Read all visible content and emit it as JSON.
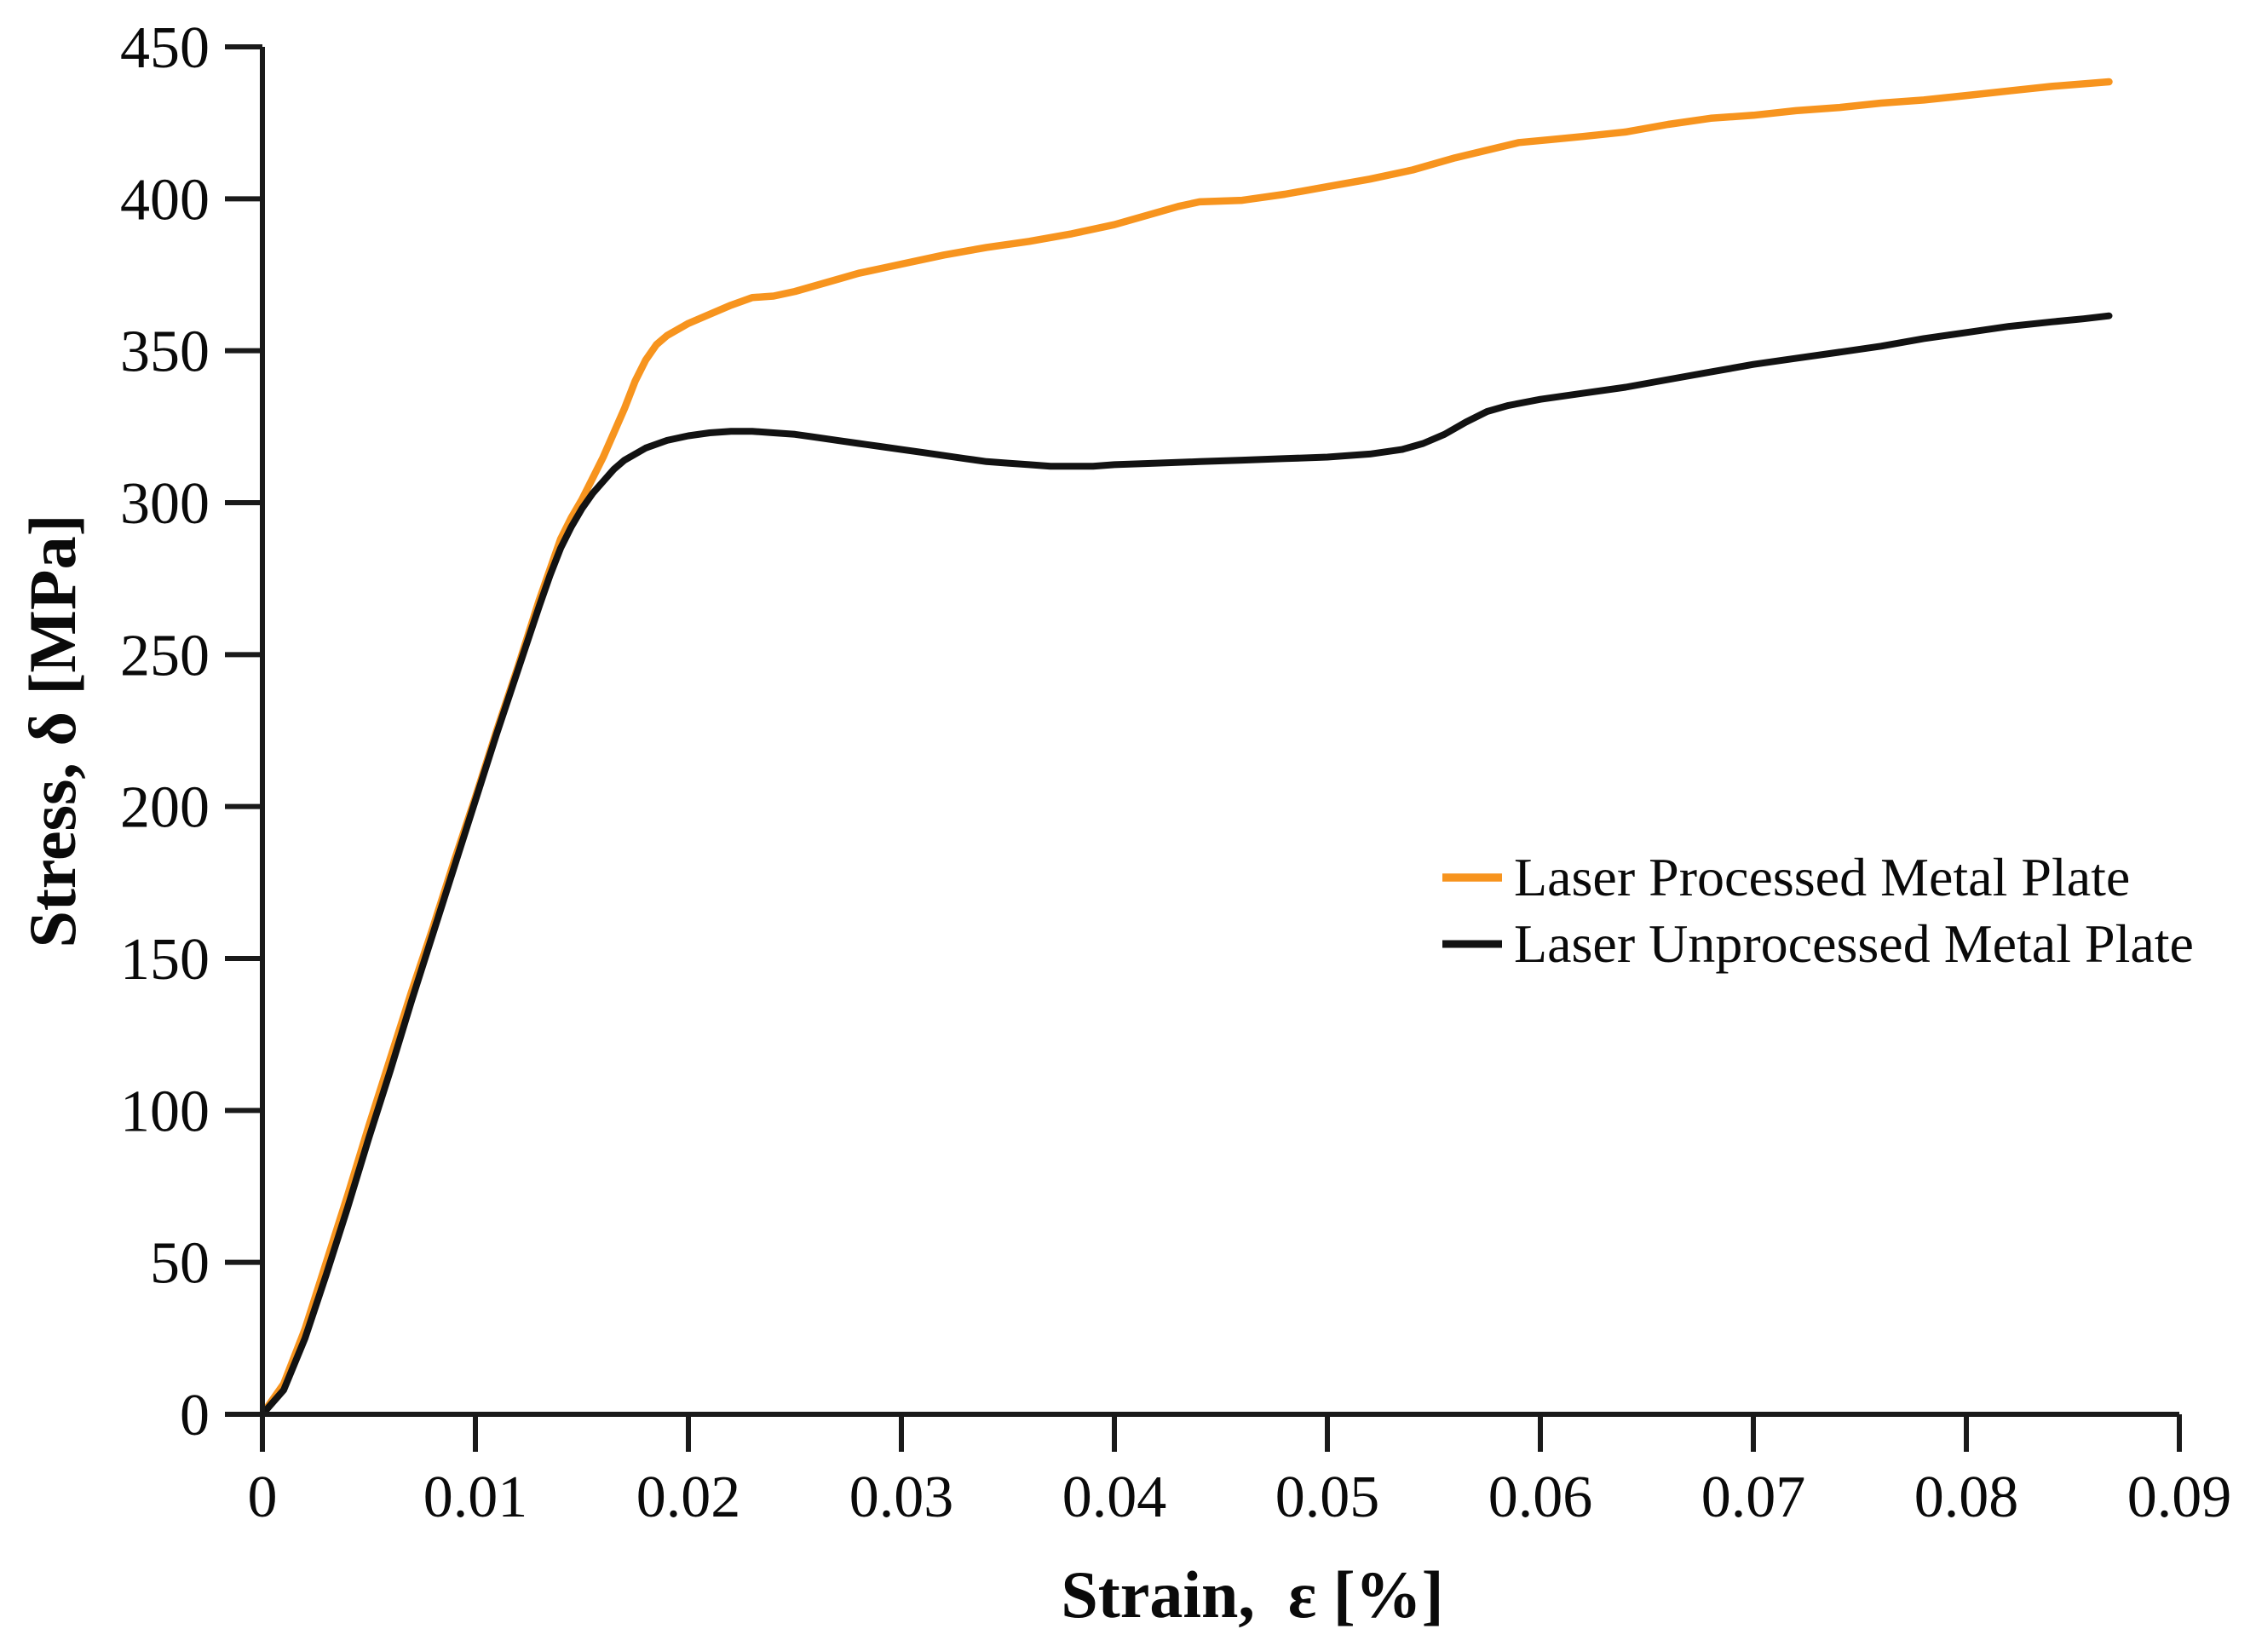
{
  "chart_data": {
    "type": "line",
    "title": "",
    "xlabel": "Strain,  ε [%]",
    "ylabel": "Stress, δ [MPa]",
    "xlim": [
      0,
      0.09
    ],
    "ylim": [
      0,
      450
    ],
    "x_ticks": [
      0,
      0.01,
      0.02,
      0.03,
      0.04,
      0.05,
      0.06,
      0.07,
      0.08,
      0.09
    ],
    "x_tick_labels": [
      "0",
      "0.01",
      "0.02",
      "0.03",
      "0.04",
      "0.05",
      "0.06",
      "0.07",
      "0.08",
      "0.09"
    ],
    "y_ticks": [
      0,
      50,
      100,
      150,
      200,
      250,
      300,
      350,
      400,
      450
    ],
    "y_tick_labels": [
      "0",
      "50",
      "100",
      "150",
      "200",
      "250",
      "300",
      "350",
      "400",
      "450"
    ],
    "grid": false,
    "legend_position": "right-middle",
    "series": [
      {
        "name": "Laser Processed Metal Plate",
        "color": "#F7941E",
        "stroke_width": 8.5,
        "points": [
          [
            0,
            0
          ],
          [
            0.001,
            10
          ],
          [
            0.002,
            28
          ],
          [
            0.003,
            50
          ],
          [
            0.004,
            72
          ],
          [
            0.005,
            95
          ],
          [
            0.006,
            117
          ],
          [
            0.007,
            139
          ],
          [
            0.008,
            160
          ],
          [
            0.009,
            182
          ],
          [
            0.01,
            203
          ],
          [
            0.011,
            225
          ],
          [
            0.012,
            246
          ],
          [
            0.013,
            268
          ],
          [
            0.014,
            288
          ],
          [
            0.0145,
            295
          ],
          [
            0.015,
            301
          ],
          [
            0.0155,
            308
          ],
          [
            0.016,
            315
          ],
          [
            0.0165,
            323
          ],
          [
            0.017,
            331
          ],
          [
            0.0175,
            340
          ],
          [
            0.018,
            347
          ],
          [
            0.0185,
            352
          ],
          [
            0.019,
            355
          ],
          [
            0.0195,
            357
          ],
          [
            0.02,
            359
          ],
          [
            0.021,
            362
          ],
          [
            0.022,
            365
          ],
          [
            0.023,
            367.5
          ],
          [
            0.024,
            368
          ],
          [
            0.025,
            369.5
          ],
          [
            0.026,
            371.5
          ],
          [
            0.027,
            373.5
          ],
          [
            0.028,
            375.5
          ],
          [
            0.029,
            377
          ],
          [
            0.03,
            378.5
          ],
          [
            0.032,
            381.5
          ],
          [
            0.034,
            384
          ],
          [
            0.036,
            386
          ],
          [
            0.038,
            388.5
          ],
          [
            0.04,
            391.5
          ],
          [
            0.042,
            395.5
          ],
          [
            0.043,
            397.5
          ],
          [
            0.044,
            399
          ],
          [
            0.046,
            399.5
          ],
          [
            0.048,
            401.5
          ],
          [
            0.05,
            404
          ],
          [
            0.052,
            406.5
          ],
          [
            0.054,
            409.5
          ],
          [
            0.056,
            413.5
          ],
          [
            0.0575,
            416
          ],
          [
            0.059,
            418.5
          ],
          [
            0.0605,
            419.5
          ],
          [
            0.062,
            420.5
          ],
          [
            0.064,
            422
          ],
          [
            0.066,
            424.5
          ],
          [
            0.068,
            426.5
          ],
          [
            0.07,
            427.5
          ],
          [
            0.072,
            429
          ],
          [
            0.074,
            430
          ],
          [
            0.076,
            431.5
          ],
          [
            0.078,
            432.5
          ],
          [
            0.08,
            434
          ],
          [
            0.082,
            435.5
          ],
          [
            0.084,
            437
          ],
          [
            0.0867,
            438.5
          ]
        ]
      },
      {
        "name": "Laser Unprocessed Metal Plate",
        "color": "#121212",
        "stroke_width": 8,
        "points": [
          [
            0,
            0
          ],
          [
            0.001,
            8
          ],
          [
            0.002,
            25
          ],
          [
            0.003,
            46
          ],
          [
            0.004,
            68
          ],
          [
            0.005,
            91
          ],
          [
            0.006,
            113
          ],
          [
            0.007,
            136
          ],
          [
            0.008,
            158
          ],
          [
            0.009,
            180
          ],
          [
            0.01,
            202
          ],
          [
            0.011,
            224
          ],
          [
            0.012,
            245
          ],
          [
            0.013,
            266
          ],
          [
            0.0135,
            276
          ],
          [
            0.014,
            285
          ],
          [
            0.0145,
            292
          ],
          [
            0.015,
            298
          ],
          [
            0.0155,
            303
          ],
          [
            0.016,
            307
          ],
          [
            0.0165,
            311
          ],
          [
            0.017,
            314
          ],
          [
            0.018,
            318
          ],
          [
            0.019,
            320.5
          ],
          [
            0.02,
            322
          ],
          [
            0.021,
            323
          ],
          [
            0.022,
            323.5
          ],
          [
            0.023,
            323.5
          ],
          [
            0.024,
            323
          ],
          [
            0.025,
            322.5
          ],
          [
            0.026,
            321.5
          ],
          [
            0.027,
            320.5
          ],
          [
            0.028,
            319.5
          ],
          [
            0.029,
            318.5
          ],
          [
            0.03,
            317.5
          ],
          [
            0.031,
            316.5
          ],
          [
            0.032,
            315.5
          ],
          [
            0.033,
            314.5
          ],
          [
            0.034,
            313.5
          ],
          [
            0.035,
            313
          ],
          [
            0.036,
            312.5
          ],
          [
            0.037,
            312
          ],
          [
            0.038,
            312
          ],
          [
            0.039,
            312
          ],
          [
            0.04,
            312.5
          ],
          [
            0.042,
            313
          ],
          [
            0.044,
            313.5
          ],
          [
            0.046,
            314
          ],
          [
            0.048,
            314.5
          ],
          [
            0.05,
            315
          ],
          [
            0.052,
            316
          ],
          [
            0.0535,
            317.5
          ],
          [
            0.0545,
            319.5
          ],
          [
            0.0555,
            322.5
          ],
          [
            0.0565,
            326.5
          ],
          [
            0.0575,
            330
          ],
          [
            0.0585,
            332
          ],
          [
            0.06,
            334
          ],
          [
            0.062,
            336
          ],
          [
            0.064,
            338
          ],
          [
            0.066,
            340.5
          ],
          [
            0.068,
            343
          ],
          [
            0.07,
            345.5
          ],
          [
            0.072,
            347.5
          ],
          [
            0.074,
            349.5
          ],
          [
            0.076,
            351.5
          ],
          [
            0.078,
            354
          ],
          [
            0.08,
            356
          ],
          [
            0.082,
            358
          ],
          [
            0.084,
            359.5
          ],
          [
            0.0855,
            360.5
          ],
          [
            0.0867,
            361.5
          ]
        ]
      }
    ]
  },
  "colors": {
    "background": "#ffffff",
    "axis": "#1a1a1a",
    "text": "#0a0a0a",
    "accent_orange": "#F7941E"
  }
}
